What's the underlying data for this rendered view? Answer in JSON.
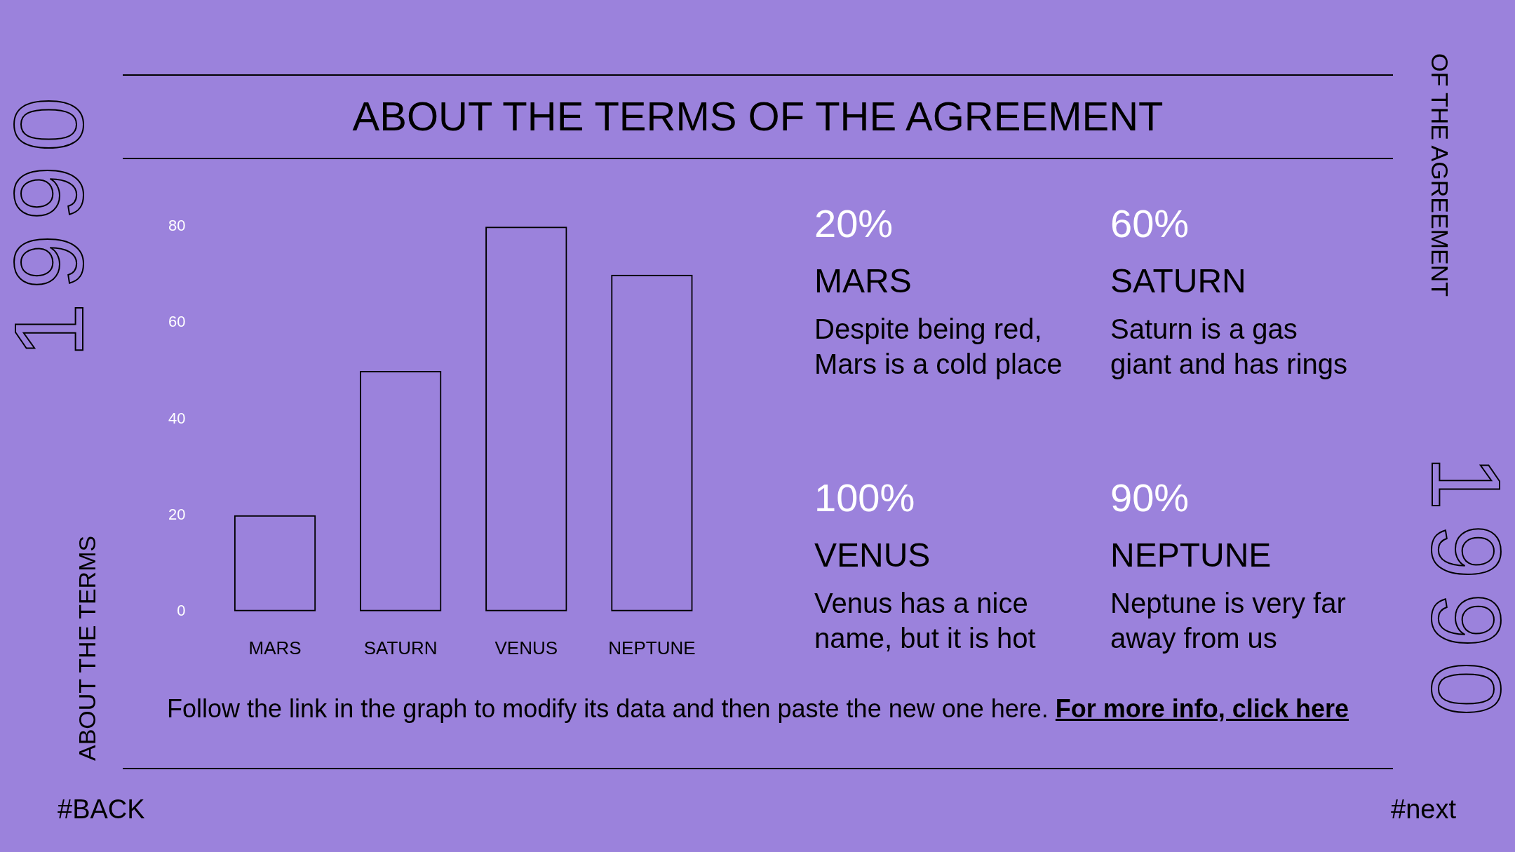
{
  "chart_data": {
    "type": "bar",
    "title": "ABOUT THE TERMS OF THE AGREEMENT",
    "categories": [
      "MARS",
      "SATURN",
      "VENUS",
      "NEPTUNE"
    ],
    "values": [
      20,
      50,
      80,
      70
    ],
    "color": "#000000",
    "ylim": [
      0,
      80
    ],
    "yticks": [
      0,
      20,
      40,
      60,
      80
    ],
    "grid": false,
    "legend": false,
    "annotations": [
      "20%",
      "MARS",
      "Despite being red,\nMars is a cold place",
      "60%",
      "SATURN",
      "Saturn is a gas\ngiant and has rings",
      "100%",
      "VENUS",
      "Venus has a nice\nname, but it is hot",
      "90%",
      "NEPTUNE",
      "Neptune is very far\naway from us",
      "Follow the link in the graph to modify its data and then paste the new one here.",
      "For more info, click here",
      "ABOUT THE TERMS",
      "OF THE AGREEMENT",
      "1990",
      "1990",
      "#BACK",
      "#next"
    ]
  }
}
